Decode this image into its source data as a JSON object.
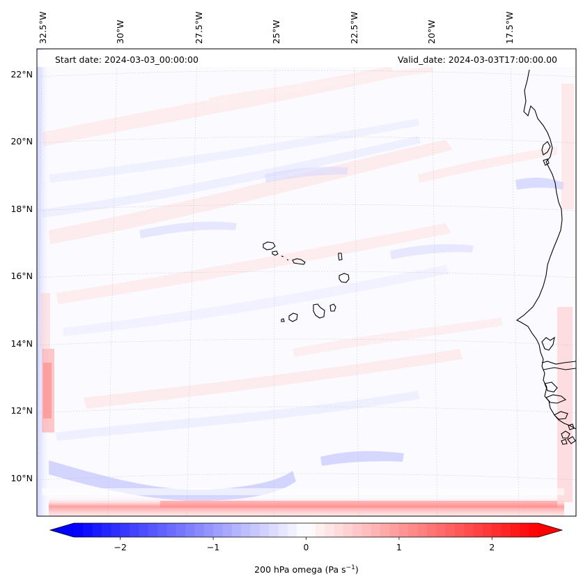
{
  "map": {
    "start_date": "Start date: 2024-03-03_00:00:00",
    "valid_date": "Valid_date: 2024-03-03T17:00:00.00",
    "lon_labels": [
      "32.5°W",
      "30°W",
      "27.5°W",
      "25°W",
      "22.5°W",
      "20°W",
      "17.5°W"
    ],
    "lat_labels": [
      "22°N",
      "20°N",
      "18°N",
      "16°N",
      "14°N",
      "12°N",
      "10°N"
    ],
    "features": [
      "Cape Verde islands",
      "West African coastline"
    ]
  },
  "colorbar": {
    "variable": "200 hPa omega",
    "units_prefix": "(Pa s",
    "units_exp": "−1",
    "units_suffix": ")",
    "ticks": [
      "−2",
      "−1",
      "0",
      "1",
      "2"
    ],
    "tick_values": [
      -2,
      -1,
      0,
      1,
      2
    ],
    "range": [
      -2.5,
      2.5
    ],
    "colormap": "bwr",
    "min_color": "#0000ff",
    "mid_color": "#ffffff",
    "max_color": "#ff0000"
  }
}
